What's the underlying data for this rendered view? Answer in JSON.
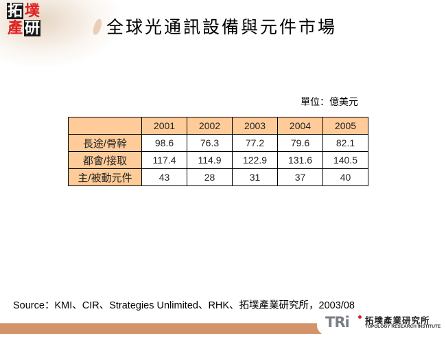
{
  "logo": {
    "chars": [
      "拓",
      "墣",
      "產",
      "研"
    ]
  },
  "title": "全球光通訊設備與元件市場",
  "unit_label": "單位：億美元",
  "table": {
    "columns": [
      "",
      "2001",
      "2002",
      "2003",
      "2004",
      "2005"
    ],
    "rows": [
      {
        "label": "長途/骨幹",
        "values": [
          "98.6",
          "76.3",
          "77.2",
          "79.6",
          "82.1"
        ]
      },
      {
        "label": "都會/接取",
        "values": [
          "117.4",
          "114.9",
          "122.9",
          "131.6",
          "140.5"
        ]
      },
      {
        "label": "主/被動元件",
        "values": [
          "43",
          "28",
          "31",
          "37",
          "40"
        ]
      }
    ]
  },
  "source": "Source：KMI、CIR、Strategies Unlimited、RHK、拓墣產業研究所，2003/08",
  "footer_logo": {
    "mark": "TRi",
    "chinese": "拓墣產業研究所",
    "english": "TOPOLOGY RESEARCH INSTITUTE"
  },
  "colors": {
    "header_fill": "#ffcc99",
    "bottom_band": "#d4946a",
    "logo_red": "#e02020"
  }
}
